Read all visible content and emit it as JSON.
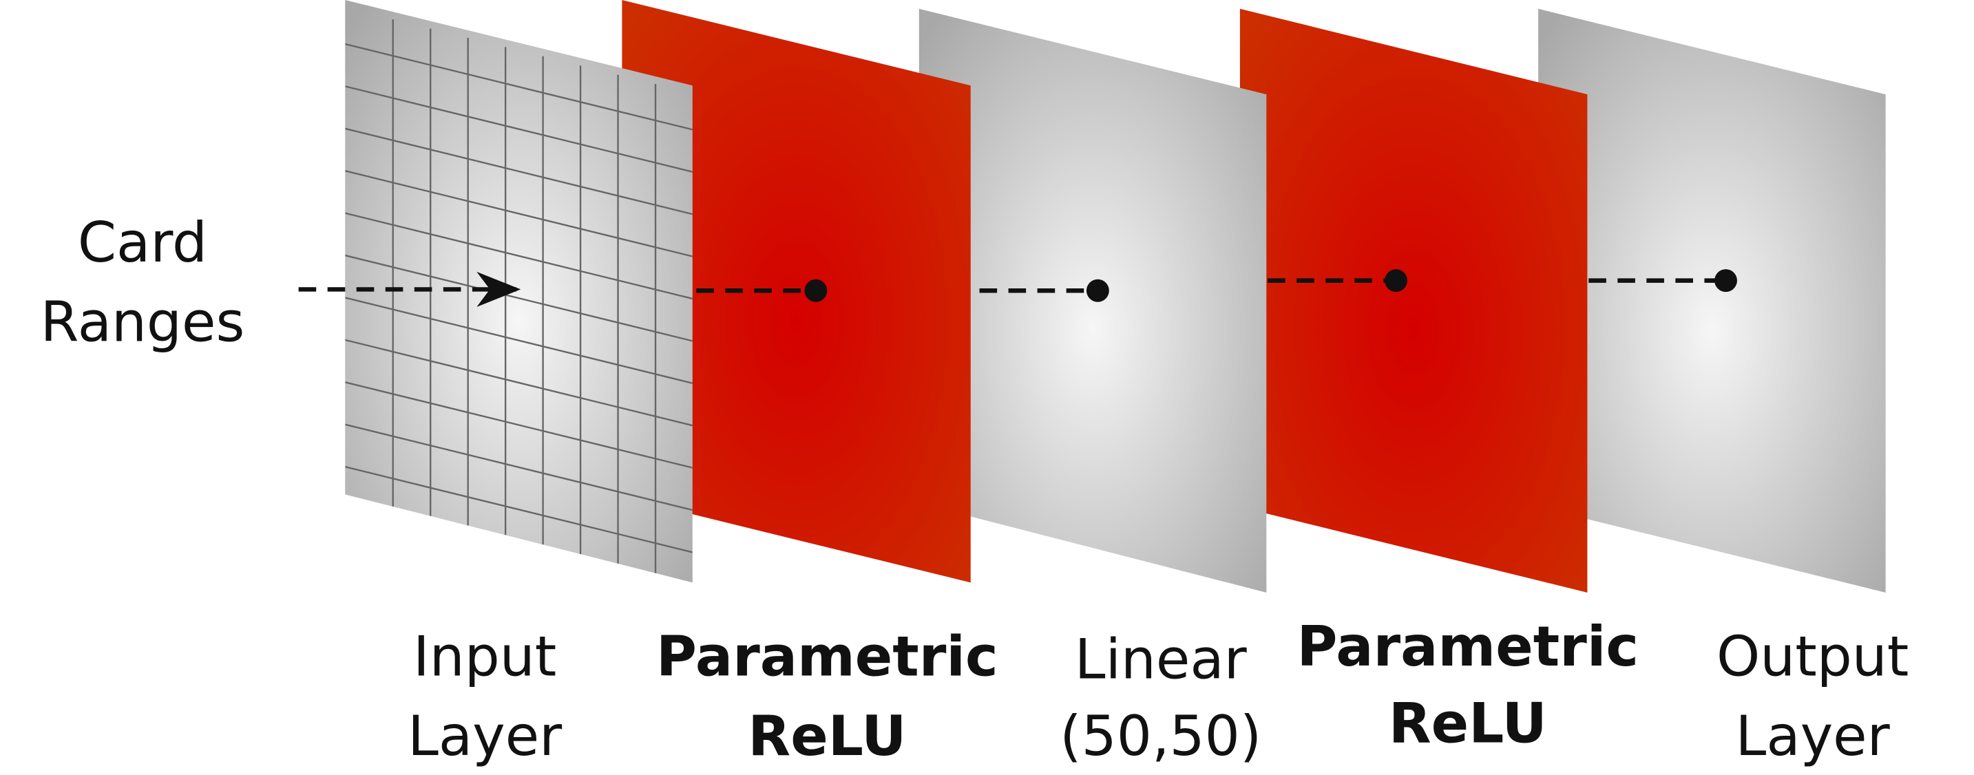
{
  "input_label": {
    "line1": "Card",
    "line2": "Ranges"
  },
  "layers": [
    {
      "line1": "Input",
      "line2": "Layer"
    },
    {
      "line1": "Parametric",
      "line2": "ReLU"
    },
    {
      "line1": "Linear",
      "line2": "(50,50)"
    },
    {
      "line1": "Parametric",
      "line2": "ReLU"
    },
    {
      "line1": "Output",
      "line2": "Layer"
    }
  ]
}
